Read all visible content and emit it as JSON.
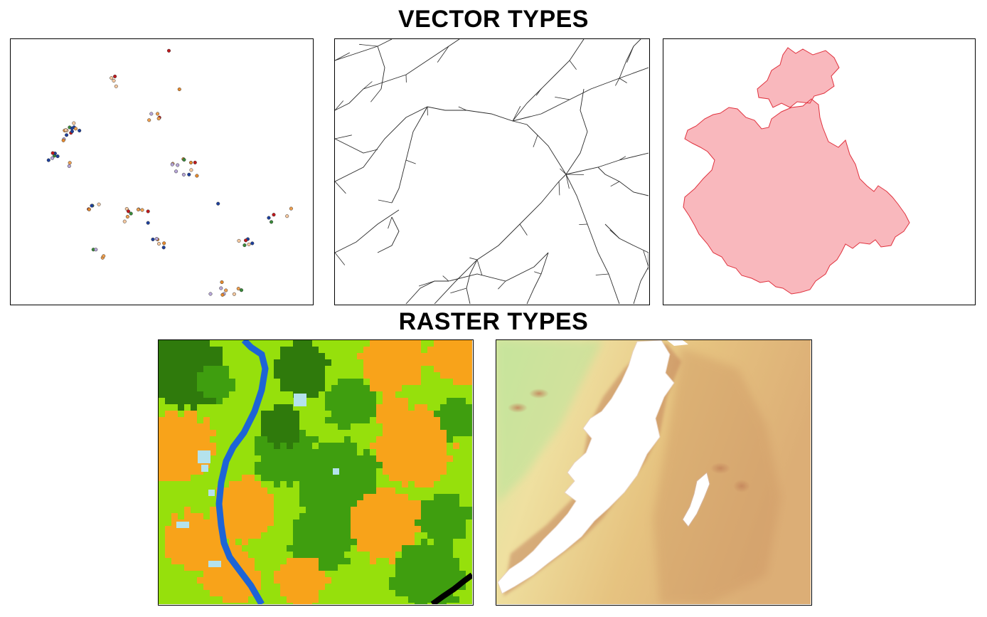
{
  "headings": {
    "vector": "VECTOR TYPES",
    "raster": "RASTER TYPES"
  },
  "colors": {
    "polygon_fill": "#f9b8bd",
    "polygon_stroke": "#e0323e",
    "line_stroke": "#2a2a2a",
    "point_palette": [
      "#c0181c",
      "#1d3f9c",
      "#f0a050",
      "#f6c9a0",
      "#b7a6d8",
      "#3a8a3a",
      "#e68a2e"
    ],
    "landcover": {
      "dark_forest": "#2f7a0c",
      "forest": "#3f9e0f",
      "grassland": "#96e00c",
      "cropland": "#f8a31a",
      "water_river": "#1d64d6",
      "wetland": "#b4e2ec",
      "urban": "#000000"
    },
    "elevation_ramp": [
      "#a7e48d",
      "#f1e5a2",
      "#e3bd7c",
      "#c4865c",
      "#ffffff"
    ]
  },
  "panels": {
    "points": "points-vector",
    "lines": "lines-vector",
    "polygon": "polygon-vector",
    "landcover": "landcover-raster",
    "elevation": "elevation-raster"
  }
}
